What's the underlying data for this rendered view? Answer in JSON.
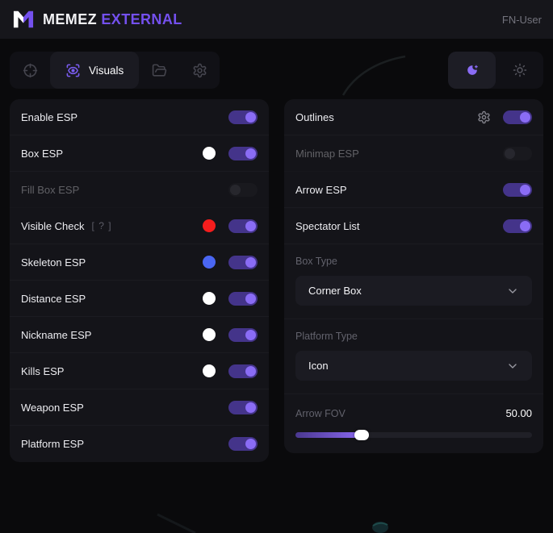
{
  "header": {
    "brand_primary": "MEMEZ",
    "brand_accent": "EXTERNAL",
    "user_label": "FN-User"
  },
  "tabbar": {
    "active_tab_label": "Visuals"
  },
  "left_panel": {
    "rows": [
      {
        "label": "Enable ESP",
        "on": true
      },
      {
        "label": "Box ESP",
        "on": true,
        "color": "#ffffff"
      },
      {
        "label": "Fill Box ESP",
        "on": false,
        "disabled": true
      },
      {
        "label": "Visible Check",
        "on": true,
        "color": "#f51d1d",
        "hint": "[ ? ]"
      },
      {
        "label": "Skeleton ESP",
        "on": true,
        "color": "#4a66f2"
      },
      {
        "label": "Distance ESP",
        "on": true,
        "color": "#ffffff"
      },
      {
        "label": "Nickname ESP",
        "on": true,
        "color": "#ffffff"
      },
      {
        "label": "Kills ESP",
        "on": true,
        "color": "#ffffff"
      },
      {
        "label": "Weapon ESP",
        "on": true
      },
      {
        "label": "Platform ESP",
        "on": true
      }
    ]
  },
  "right_panel": {
    "rows": [
      {
        "label": "Outlines",
        "on": true,
        "gear": true
      },
      {
        "label": "Minimap ESP",
        "on": false,
        "disabled": true
      },
      {
        "label": "Arrow ESP",
        "on": true
      },
      {
        "label": "Spectator List",
        "on": true
      }
    ],
    "selects": [
      {
        "label": "Box Type",
        "value": "Corner Box"
      },
      {
        "label": "Platform Type",
        "value": "Icon"
      }
    ],
    "slider": {
      "label": "Arrow FOV",
      "value": "50.00",
      "percent": 28
    }
  },
  "colors": {
    "accent": "#7450ee",
    "toggle_on_track": "#44348a",
    "toggle_on_knob": "#8a6cf5",
    "swatch_red": "#f51d1d",
    "swatch_blue": "#4a66f2",
    "swatch_white": "#ffffff"
  }
}
